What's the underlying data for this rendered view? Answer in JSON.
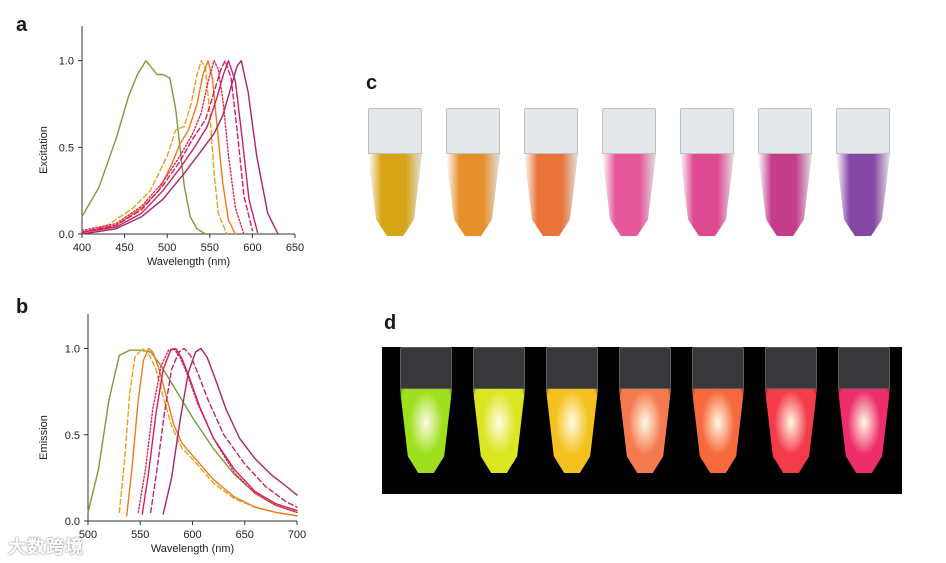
{
  "panels": {
    "a": "a",
    "b": "b",
    "c": "c",
    "d": "d"
  },
  "watermark": "大数跨境",
  "colors": {
    "olive": "#7d9a3a",
    "gold": "#e6a21a",
    "orange": "#ee7a1f",
    "red": "#e3264f",
    "crimson": "#d21f5b",
    "magenta": "#c4236e",
    "purple": "#a8246a"
  },
  "chart_data": [
    {
      "id": "a",
      "type": "line",
      "xlabel": "Wavelength (nm)",
      "ylabel": "Excitation",
      "xlim": [
        400,
        650
      ],
      "ylim": [
        0,
        1.2
      ],
      "xticks": [
        "400",
        "450",
        "500",
        "550",
        "600",
        "650"
      ],
      "yticks": [
        "0.0",
        "0.5",
        "1.0"
      ],
      "series": [
        {
          "color": "olive",
          "dash": "solid",
          "x": [
            400,
            420,
            440,
            455,
            465,
            475,
            480,
            488,
            495,
            503,
            510,
            515,
            520,
            527,
            535,
            545
          ],
          "y": [
            0.1,
            0.27,
            0.55,
            0.8,
            0.92,
            1.0,
            0.97,
            0.92,
            0.92,
            0.9,
            0.72,
            0.5,
            0.28,
            0.1,
            0.03,
            0.0
          ]
        },
        {
          "color": "gold",
          "dash": "dash",
          "x": [
            400,
            430,
            460,
            480,
            500,
            510,
            520,
            528,
            535,
            540,
            545,
            550,
            555,
            560,
            570
          ],
          "y": [
            0.01,
            0.05,
            0.15,
            0.25,
            0.45,
            0.6,
            0.62,
            0.75,
            0.92,
            1.0,
            0.95,
            0.7,
            0.35,
            0.12,
            0.0
          ]
        },
        {
          "color": "orange",
          "dash": "solid",
          "x": [
            400,
            440,
            470,
            490,
            505,
            515,
            525,
            535,
            542,
            548,
            553,
            558,
            565,
            572,
            580
          ],
          "y": [
            0.01,
            0.05,
            0.15,
            0.25,
            0.4,
            0.52,
            0.6,
            0.75,
            0.92,
            1.0,
            0.9,
            0.65,
            0.3,
            0.08,
            0.0
          ]
        },
        {
          "color": "red",
          "dash": "dot",
          "x": [
            400,
            440,
            470,
            495,
            515,
            530,
            540,
            548,
            555,
            560,
            566,
            572,
            580,
            590
          ],
          "y": [
            0.02,
            0.06,
            0.16,
            0.3,
            0.45,
            0.58,
            0.7,
            0.88,
            1.0,
            0.95,
            0.75,
            0.45,
            0.15,
            0.0
          ]
        },
        {
          "color": "crimson",
          "dash": "dash",
          "x": [
            400,
            440,
            470,
            495,
            515,
            530,
            545,
            555,
            563,
            568,
            575,
            582,
            590,
            600
          ],
          "y": [
            0.01,
            0.05,
            0.14,
            0.28,
            0.42,
            0.55,
            0.66,
            0.82,
            0.95,
            1.0,
            0.9,
            0.6,
            0.22,
            0.02
          ]
        },
        {
          "color": "magenta",
          "dash": "solid",
          "x": [
            400,
            440,
            470,
            495,
            515,
            532,
            547,
            558,
            566,
            572,
            580,
            588,
            596,
            606
          ],
          "y": [
            0.01,
            0.04,
            0.12,
            0.25,
            0.38,
            0.5,
            0.62,
            0.78,
            0.92,
            1.0,
            0.88,
            0.55,
            0.2,
            0.01
          ]
        },
        {
          "color": "purple",
          "dash": "solid",
          "x": [
            400,
            440,
            470,
            495,
            520,
            540,
            555,
            565,
            575,
            582,
            587,
            595,
            605,
            618,
            630
          ],
          "y": [
            0.0,
            0.03,
            0.1,
            0.2,
            0.35,
            0.48,
            0.58,
            0.68,
            0.85,
            0.97,
            1.0,
            0.82,
            0.45,
            0.12,
            0.0
          ]
        }
      ]
    },
    {
      "id": "b",
      "type": "line",
      "xlabel": "Wavelength (nm)",
      "ylabel": "Emission",
      "xlim": [
        500,
        700
      ],
      "ylim": [
        0,
        1.2
      ],
      "xticks": [
        "500",
        "550",
        "600",
        "650",
        "700"
      ],
      "yticks": [
        "0.0",
        "0.5",
        "1.0"
      ],
      "series": [
        {
          "color": "olive",
          "dash": "solid",
          "x": [
            500,
            510,
            520,
            530,
            540,
            550,
            560,
            570,
            580,
            600,
            620,
            640,
            660,
            680,
            700
          ],
          "y": [
            0.05,
            0.3,
            0.7,
            0.96,
            0.99,
            0.99,
            0.98,
            0.9,
            0.8,
            0.6,
            0.42,
            0.27,
            0.16,
            0.09,
            0.05
          ]
        },
        {
          "color": "gold",
          "dash": "dash",
          "x": [
            530,
            535,
            540,
            545,
            552,
            558,
            565,
            572,
            580,
            590,
            600,
            620,
            640,
            660,
            680,
            700
          ],
          "y": [
            0.05,
            0.35,
            0.75,
            0.95,
            1.0,
            0.97,
            0.88,
            0.72,
            0.55,
            0.42,
            0.36,
            0.22,
            0.13,
            0.08,
            0.05,
            0.03
          ]
        },
        {
          "color": "orange",
          "dash": "solid",
          "x": [
            537,
            542,
            548,
            553,
            558,
            562,
            568,
            575,
            582,
            590,
            600,
            620,
            640,
            660,
            680,
            700
          ],
          "y": [
            0.03,
            0.3,
            0.7,
            0.93,
            1.0,
            0.98,
            0.88,
            0.72,
            0.56,
            0.45,
            0.38,
            0.24,
            0.14,
            0.08,
            0.05,
            0.03
          ]
        },
        {
          "color": "red",
          "dash": "dot",
          "x": [
            548,
            555,
            562,
            570,
            577,
            582,
            588,
            595,
            605,
            620,
            640,
            660,
            680,
            700
          ],
          "y": [
            0.05,
            0.3,
            0.65,
            0.9,
            0.99,
            1.0,
            0.95,
            0.85,
            0.68,
            0.48,
            0.28,
            0.16,
            0.09,
            0.05
          ]
        },
        {
          "color": "crimson",
          "dash": "solid",
          "x": [
            552,
            558,
            565,
            572,
            579,
            584,
            590,
            597,
            607,
            620,
            640,
            660,
            680,
            700
          ],
          "y": [
            0.04,
            0.28,
            0.62,
            0.88,
            0.99,
            1.0,
            0.94,
            0.83,
            0.66,
            0.48,
            0.3,
            0.17,
            0.1,
            0.06
          ]
        },
        {
          "color": "magenta",
          "dash": "dash",
          "x": [
            560,
            566,
            573,
            580,
            587,
            592,
            598,
            605,
            615,
            630,
            650,
            670,
            690,
            700
          ],
          "y": [
            0.05,
            0.3,
            0.62,
            0.88,
            0.98,
            1.0,
            0.96,
            0.86,
            0.7,
            0.5,
            0.33,
            0.2,
            0.11,
            0.08
          ]
        },
        {
          "color": "purple",
          "dash": "solid",
          "x": [
            572,
            580,
            588,
            596,
            603,
            608,
            614,
            622,
            632,
            645,
            660,
            675,
            690,
            700
          ],
          "y": [
            0.04,
            0.25,
            0.58,
            0.86,
            0.98,
            1.0,
            0.95,
            0.82,
            0.65,
            0.48,
            0.36,
            0.27,
            0.2,
            0.15
          ]
        }
      ]
    }
  ],
  "tubes_c": [
    "#d8a417",
    "#e6902c",
    "#e9743a",
    "#e5579a",
    "#de4a92",
    "#c43d8c",
    "#8447a4"
  ],
  "tubes_d": [
    "#9fe01e",
    "#dbe622",
    "#f4c21f",
    "#f57a50",
    "#f66a3e",
    "#f33b4a",
    "#ec2e6b"
  ]
}
